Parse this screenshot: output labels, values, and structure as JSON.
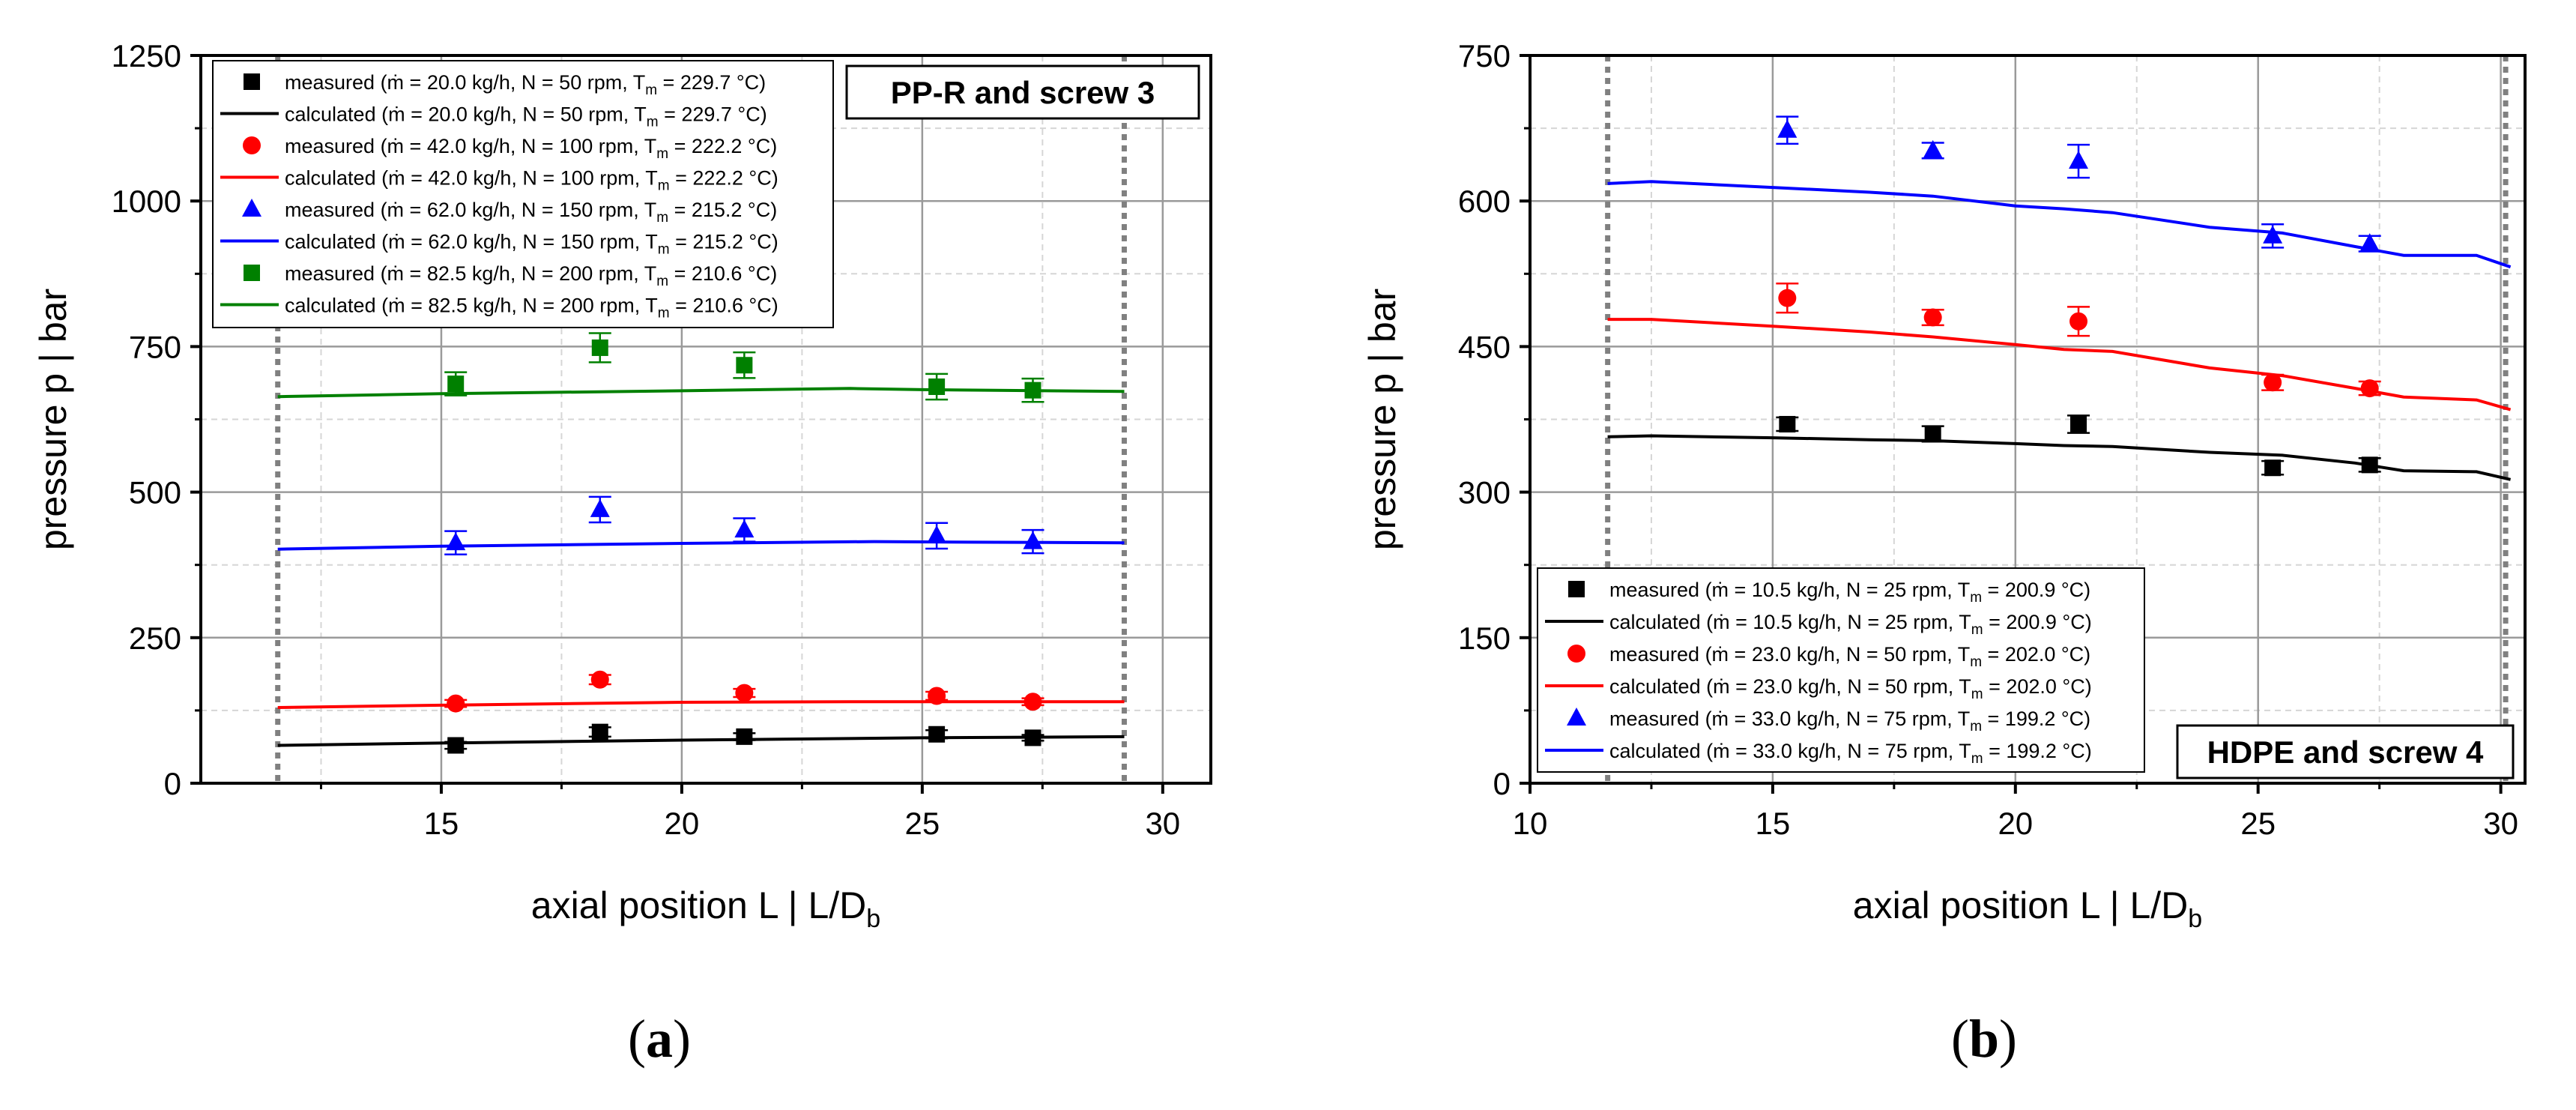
{
  "chart_data": [
    {
      "type": "line",
      "panel": "a",
      "caption": "a",
      "title": "PP-R and screw 3",
      "xlabel": "axial position L  |  L/D",
      "xlabel_sub": "b",
      "ylabel": "pressure p  |  bar",
      "xlim": [
        10,
        31
      ],
      "ylim": [
        0,
        1250
      ],
      "xticks": [
        15,
        20,
        25,
        30
      ],
      "yticks": [
        0,
        250,
        500,
        750,
        1000,
        1250
      ],
      "xtick_labels": [
        "15",
        "20",
        "25",
        "30"
      ],
      "ytick_labels": [
        "0",
        "250",
        "500",
        "750",
        "1000",
        "1250"
      ],
      "vlines": [
        11.6,
        29.2
      ],
      "grid": true,
      "legend_position": "top-left",
      "series": [
        {
          "name": "measured (ṁ = 20.0 kg/h, N = 50 rpm,   T_m = 229.7 °C)",
          "legend_main": "measured (ṁ = 20.0 kg/h, N = 50 rpm,   T",
          "legend_tail": " = 229.7 °C)",
          "color": "#000000",
          "kind": "measured",
          "marker": "square",
          "x": [
            15.3,
            18.3,
            21.3,
            25.3,
            27.3
          ],
          "y": [
            65,
            88,
            80,
            84,
            78
          ],
          "err": [
            6,
            8,
            6,
            7,
            5
          ]
        },
        {
          "name": "calculated (ṁ = 20.0 kg/h, N = 50 rpm,   T_m = 229.7 °C)",
          "legend_main": "calculated (ṁ = 20.0 kg/h, N = 50 rpm,   T",
          "legend_tail": " = 229.7 °C)",
          "color": "#000000",
          "kind": "calculated",
          "x": [
            11.6,
            15,
            20,
            25,
            29.2
          ],
          "y": [
            65,
            69,
            74,
            78,
            80
          ]
        },
        {
          "name": "measured (ṁ = 42.0 kg/h, N = 100 rpm, T_m = 222.2 °C)",
          "legend_main": "measured (ṁ = 42.0 kg/h, N = 100 rpm, T",
          "legend_tail": " = 222.2 °C)",
          "color": "#ff0000",
          "kind": "measured",
          "marker": "circle",
          "x": [
            15.3,
            18.3,
            21.3,
            25.3,
            27.3
          ],
          "y": [
            137,
            178,
            155,
            150,
            140
          ],
          "err": [
            6,
            8,
            7,
            7,
            6
          ]
        },
        {
          "name": "calculated (ṁ = 42.0 kg/h, N = 100 rpm, T_m = 222.2 °C)",
          "legend_main": "calculated (ṁ = 42.0 kg/h, N = 100 rpm, T",
          "legend_tail": " = 222.2 °C)",
          "color": "#ff0000",
          "kind": "calculated",
          "x": [
            11.6,
            15,
            20,
            23.5,
            25,
            29.2
          ],
          "y": [
            130,
            134,
            139,
            140,
            140,
            140
          ]
        },
        {
          "name": "measured (ṁ = 62.0 kg/h, N = 150 rpm, T_m = 215.2 °C)",
          "legend_main": "measured (ṁ = 62.0 kg/h, N = 150 rpm, T",
          "legend_tail": " = 215.2 °C)",
          "color": "#0000ff",
          "kind": "measured",
          "marker": "triangle",
          "x": [
            15.3,
            18.3,
            21.3,
            25.3,
            27.3
          ],
          "y": [
            413,
            470,
            435,
            425,
            415
          ],
          "err": [
            20,
            22,
            20,
            22,
            20
          ]
        },
        {
          "name": "calculated (ṁ = 62.0 kg/h, N = 150 rpm, T_m = 215.2 °C)",
          "legend_main": "calculated (ṁ = 62.0 kg/h, N = 150 rpm, T",
          "legend_tail": " = 215.2 °C)",
          "color": "#0000ff",
          "kind": "calculated",
          "x": [
            11.6,
            15,
            20,
            24,
            26,
            29.2
          ],
          "y": [
            402,
            407,
            412,
            415,
            414,
            413
          ]
        },
        {
          "name": "measured (ṁ = 82.5 kg/h, N = 200 rpm, T_m = 210.6 °C)",
          "legend_main": "measured (ṁ = 82.5 kg/h, N = 200 rpm, T",
          "legend_tail": " = 210.6 °C)",
          "color": "#008000",
          "kind": "measured",
          "marker": "square",
          "x": [
            15.3,
            18.3,
            21.3,
            25.3,
            27.3
          ],
          "y": [
            686,
            748,
            718,
            681,
            675
          ],
          "err": [
            20,
            25,
            22,
            22,
            20
          ]
        },
        {
          "name": "calculated (ṁ = 82.5 kg/h, N = 200 rpm, T_m = 210.6 °C)",
          "legend_main": "calculated (ṁ = 82.5 kg/h, N = 200 rpm, T",
          "legend_tail": " = 210.6 °C)",
          "color": "#008000",
          "kind": "calculated",
          "x": [
            11.6,
            15,
            20,
            23.5,
            25,
            29.2
          ],
          "y": [
            664,
            669,
            674,
            678,
            676,
            673
          ]
        }
      ]
    },
    {
      "type": "line",
      "panel": "b",
      "caption": "b",
      "title": "HDPE and screw 4",
      "xlabel": "axial position L  |  L/D",
      "xlabel_sub": "b",
      "ylabel": "pressure p  |  bar",
      "xlim": [
        10,
        30.5
      ],
      "ylim": [
        0,
        750
      ],
      "xticks": [
        10,
        15,
        20,
        25,
        30
      ],
      "yticks": [
        0,
        150,
        300,
        450,
        600,
        750
      ],
      "xtick_labels": [
        "10",
        "15",
        "20",
        "25",
        "30"
      ],
      "ytick_labels": [
        "0",
        "150",
        "300",
        "450",
        "600",
        "750"
      ],
      "vlines": [
        11.6,
        30.1
      ],
      "grid": true,
      "legend_position": "bottom-left",
      "series": [
        {
          "name": "measured (ṁ = 10.5 kg/h, N = 25 rpm, T_m = 200.9 °C)",
          "legend_main": "measured (ṁ = 10.5 kg/h, N = 25 rpm, T",
          "legend_tail": " = 200.9 °C)",
          "color": "#000000",
          "kind": "measured",
          "marker": "square",
          "x": [
            15.3,
            18.3,
            21.3,
            25.3,
            27.3
          ],
          "y": [
            370,
            360,
            370,
            325,
            328
          ],
          "err": [
            7,
            8,
            9,
            7,
            7
          ]
        },
        {
          "name": "calculated (ṁ = 10.5 kg/h, N = 25 rpm, T_m = 200.9 °C)",
          "legend_main": "calculated (ṁ = 10.5 kg/h, N = 25 rpm, T",
          "legend_tail": " = 200.9 °C)",
          "color": "#000000",
          "kind": "calculated",
          "x": [
            11.6,
            12.5,
            15,
            17,
            18.3,
            20,
            21,
            22,
            24,
            25.5,
            27,
            28,
            29.5,
            30.2
          ],
          "y": [
            357,
            358,
            356,
            354,
            353,
            350,
            348,
            347,
            341,
            338,
            330,
            322,
            321,
            313
          ]
        },
        {
          "name": "measured (ṁ = 23.0 kg/h, N = 50 rpm, T_m = 202.0 °C)",
          "legend_main": "measured (ṁ = 23.0 kg/h, N = 50 rpm, T",
          "legend_tail": " = 202.0 °C)",
          "color": "#ff0000",
          "kind": "measured",
          "marker": "circle",
          "x": [
            15.3,
            18.3,
            21.3,
            25.3,
            27.3
          ],
          "y": [
            500,
            480,
            476,
            413,
            407
          ],
          "err": [
            15,
            8,
            15,
            8,
            7
          ]
        },
        {
          "name": "calculated (ṁ = 23.0 kg/h, N = 50 rpm, T_m = 202.0 °C)",
          "legend_main": "calculated (ṁ = 23.0 kg/h, N = 50 rpm, T",
          "legend_tail": " = 202.0 °C)",
          "color": "#ff0000",
          "kind": "calculated",
          "x": [
            11.6,
            12.5,
            15,
            17,
            18.3,
            20,
            21,
            22,
            24,
            25.5,
            27,
            28,
            29.5,
            30.2
          ],
          "y": [
            478,
            478,
            471,
            465,
            460,
            452,
            447,
            445,
            428,
            420,
            407,
            398,
            395,
            385
          ]
        },
        {
          "name": "measured (ṁ = 33.0 kg/h, N = 75 rpm, T_m = 199.2 °C)",
          "legend_main": "measured (ṁ = 33.0 kg/h, N = 75 rpm, T",
          "legend_tail": " = 199.2 °C)",
          "color": "#0000ff",
          "kind": "measured",
          "marker": "triangle",
          "x": [
            15.3,
            18.3,
            21.3,
            25.3,
            27.3
          ],
          "y": [
            673,
            652,
            641,
            564,
            556
          ],
          "err": [
            14,
            8,
            17,
            12,
            8
          ]
        },
        {
          "name": "calculated (ṁ = 33.0 kg/h, N = 75 rpm, T_m = 199.2 °C)",
          "legend_main": "calculated (ṁ = 33.0 kg/h, N = 75 rpm, T",
          "legend_tail": " = 199.2 °C)",
          "color": "#0000ff",
          "kind": "calculated",
          "x": [
            11.6,
            12.5,
            15,
            17,
            18.3,
            20,
            21,
            22,
            24,
            25.5,
            27,
            28,
            29.5,
            30.2
          ],
          "y": [
            618,
            620,
            614,
            609,
            605,
            595,
            592,
            588,
            573,
            567,
            553,
            544,
            544,
            532
          ]
        }
      ]
    }
  ]
}
